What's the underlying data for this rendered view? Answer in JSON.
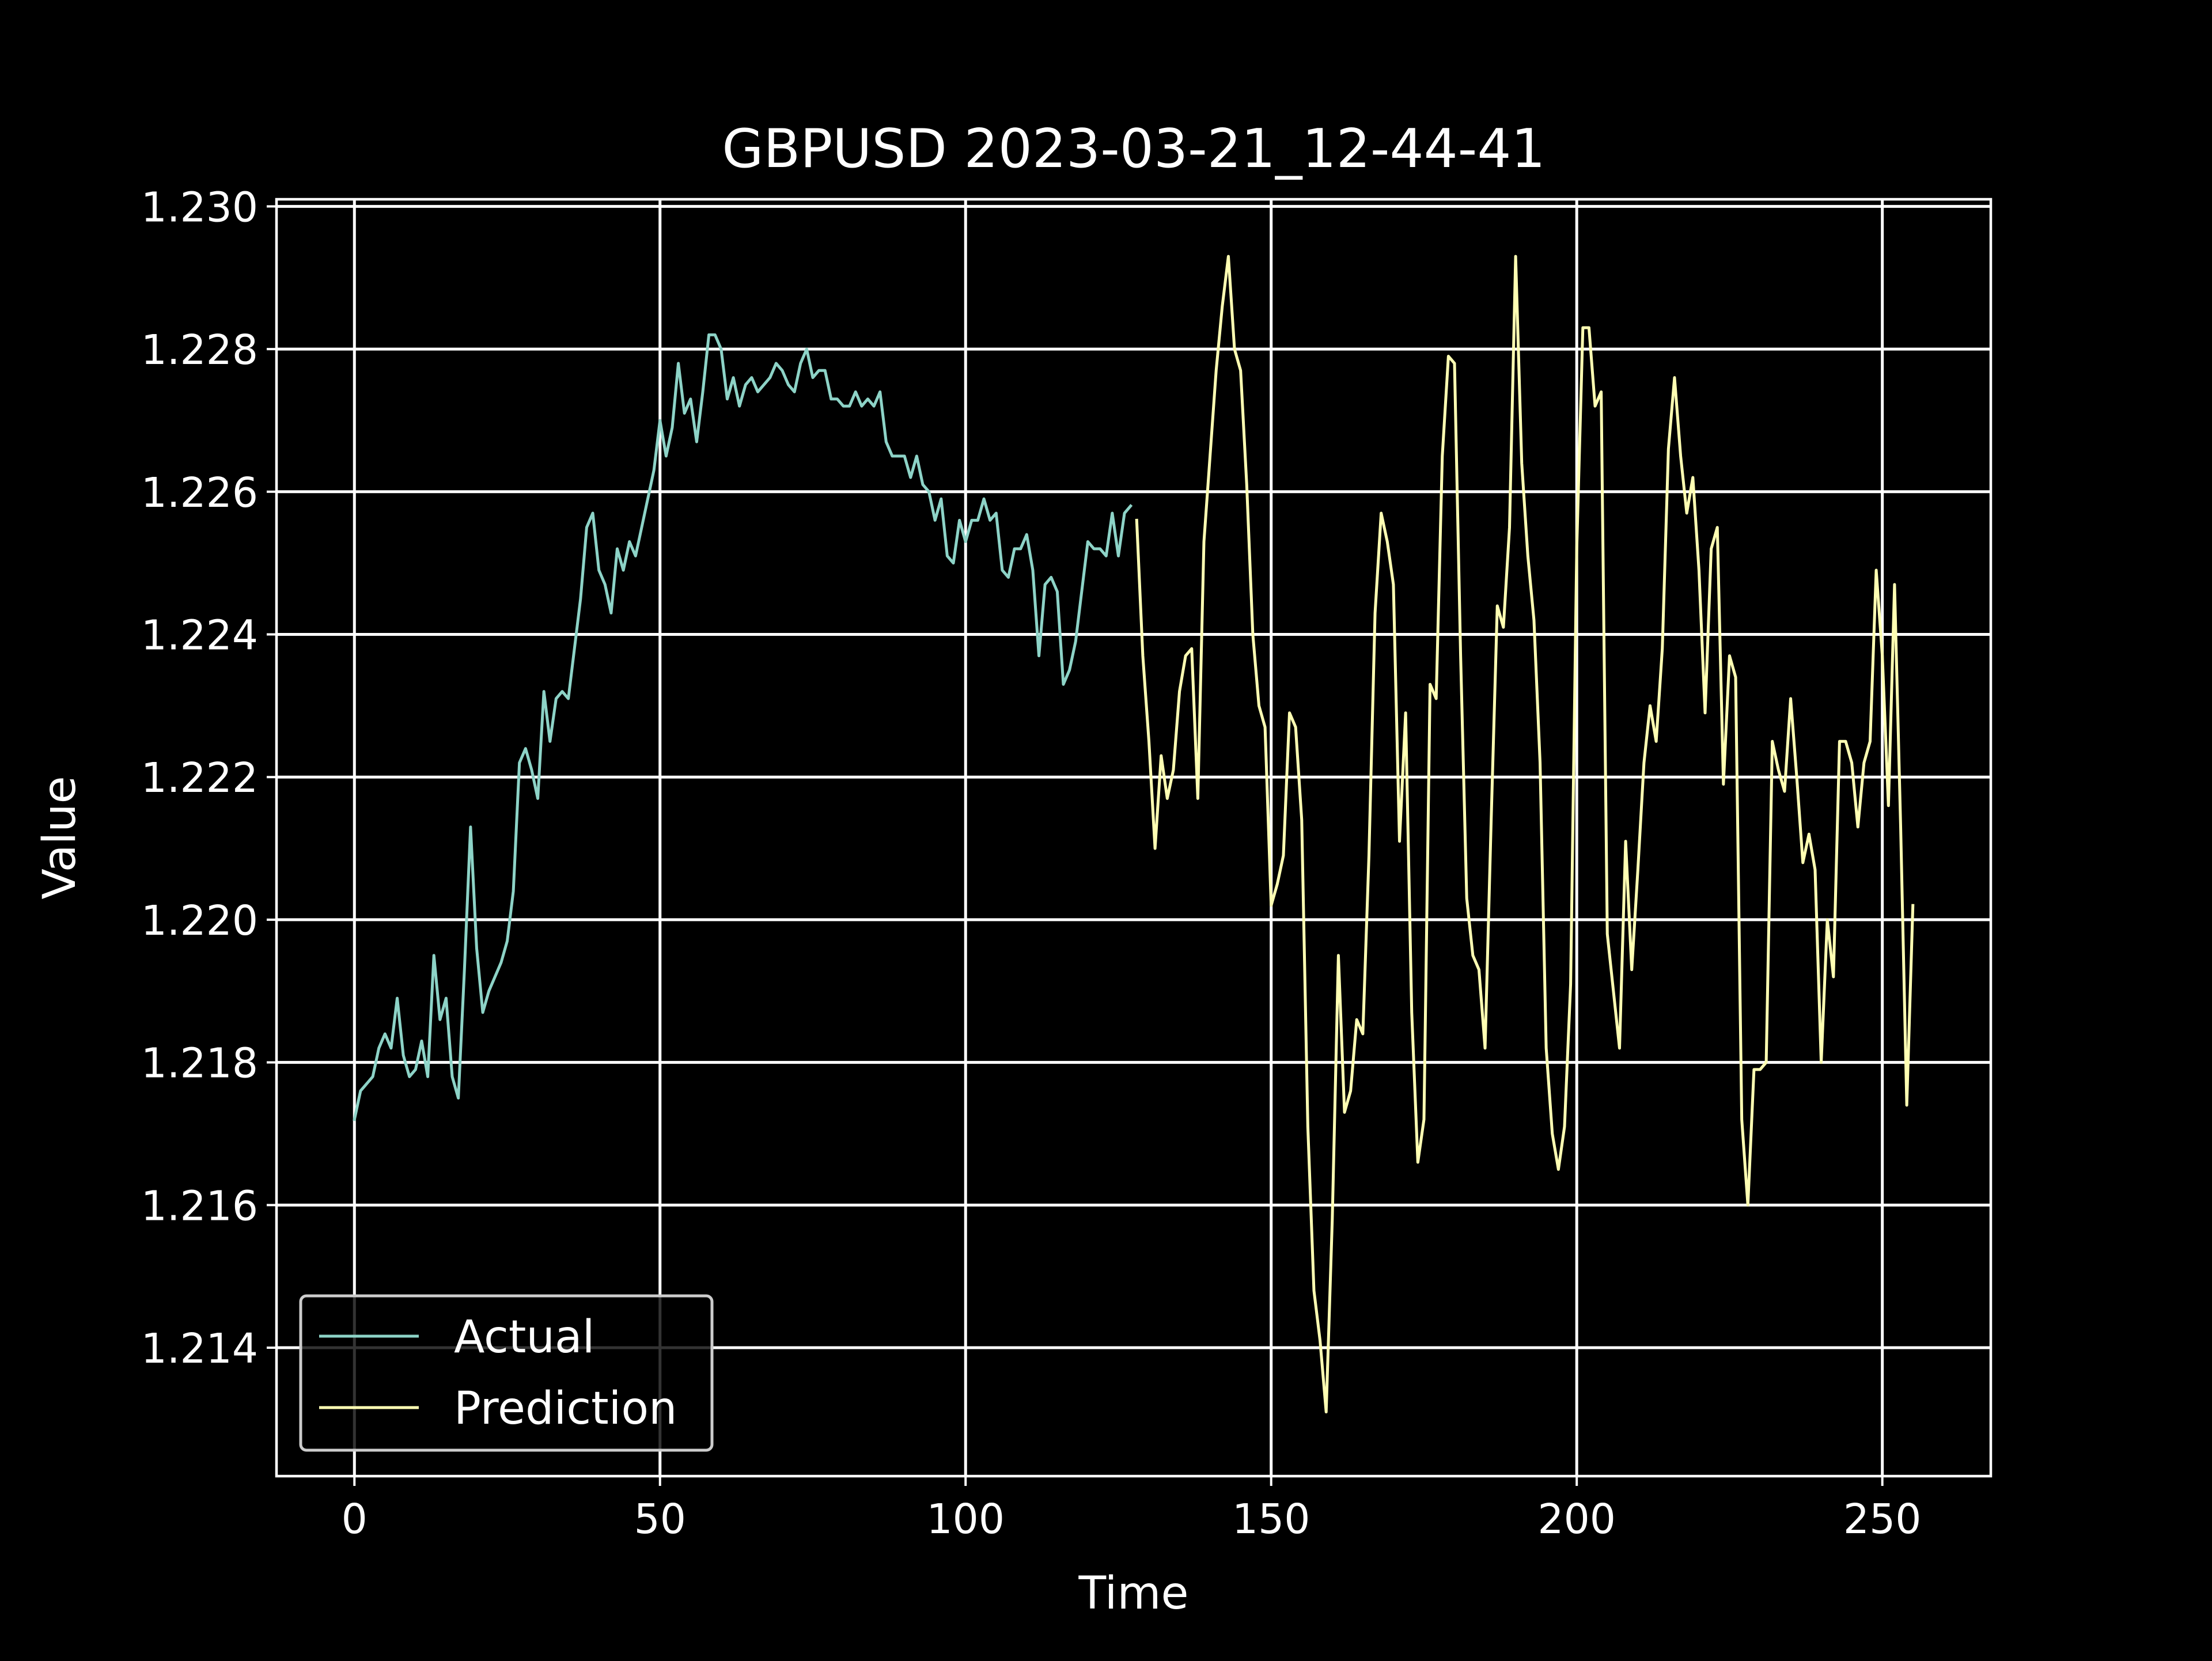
{
  "chart_data": {
    "type": "line",
    "title": "GBPUSD 2023-03-21_12-44-41",
    "xlabel": "Time",
    "ylabel": "Value",
    "xlim": [
      -12.75,
      267.75
    ],
    "ylim": [
      1.2122,
      1.2301
    ],
    "xticks": [
      0,
      50,
      100,
      150,
      200,
      250
    ],
    "xtick_labels": [
      "0",
      "50",
      "100",
      "150",
      "200",
      "250"
    ],
    "yticks": [
      1.214,
      1.216,
      1.218,
      1.22,
      1.222,
      1.224,
      1.226,
      1.228,
      1.23
    ],
    "ytick_labels": [
      "1.214",
      "1.216",
      "1.218",
      "1.220",
      "1.222",
      "1.224",
      "1.226",
      "1.228",
      "1.230"
    ],
    "grid": true,
    "legend_position": "lower-left",
    "background": "#000000",
    "series": [
      {
        "name": "Actual",
        "color": "#8dd3c7",
        "x_start": 0,
        "values": [
          1.2172,
          1.2176,
          1.2177,
          1.2178,
          1.2182,
          1.2184,
          1.2182,
          1.2189,
          1.2181,
          1.2178,
          1.2179,
          1.2183,
          1.2178,
          1.2195,
          1.2186,
          1.2189,
          1.2178,
          1.2175,
          1.2193,
          1.2213,
          1.2196,
          1.2187,
          1.219,
          1.2192,
          1.2194,
          1.2197,
          1.2204,
          1.2222,
          1.2224,
          1.2221,
          1.2217,
          1.2232,
          1.2225,
          1.2231,
          1.2232,
          1.2231,
          1.2238,
          1.2245,
          1.2255,
          1.2257,
          1.2249,
          1.2247,
          1.2243,
          1.2252,
          1.2249,
          1.2253,
          1.2251,
          1.2255,
          1.2259,
          1.2263,
          1.227,
          1.2265,
          1.2269,
          1.2278,
          1.2271,
          1.2273,
          1.2267,
          1.2274,
          1.2282,
          1.2282,
          1.228,
          1.2273,
          1.2276,
          1.2272,
          1.2275,
          1.2276,
          1.2274,
          1.2275,
          1.2276,
          1.2278,
          1.2277,
          1.2275,
          1.2274,
          1.2278,
          1.228,
          1.2276,
          1.2277,
          1.2277,
          1.2273,
          1.2273,
          1.2272,
          1.2272,
          1.2274,
          1.2272,
          1.2273,
          1.2272,
          1.2274,
          1.2267,
          1.2265,
          1.2265,
          1.2265,
          1.2262,
          1.2265,
          1.2261,
          1.226,
          1.2256,
          1.2259,
          1.2251,
          1.225,
          1.2256,
          1.2253,
          1.2256,
          1.2256,
          1.2259,
          1.2256,
          1.2257,
          1.2249,
          1.2248,
          1.2252,
          1.2252,
          1.2254,
          1.2249,
          1.2237,
          1.2247,
          1.2248,
          1.2246,
          1.2233,
          1.2235,
          1.2239,
          1.2246,
          1.2253,
          1.2252,
          1.2252,
          1.2251,
          1.2257,
          1.2251,
          1.2257,
          1.2258
        ]
      },
      {
        "name": "Prediction",
        "color": "#ffffb3",
        "x_start": 128,
        "values": [
          1.2256,
          1.2237,
          1.2225,
          1.221,
          1.2223,
          1.2217,
          1.2221,
          1.2232,
          1.2237,
          1.2238,
          1.2217,
          1.2253,
          1.2265,
          1.2277,
          1.2286,
          1.2293,
          1.228,
          1.2277,
          1.2261,
          1.224,
          1.223,
          1.2227,
          1.2202,
          1.2205,
          1.2209,
          1.2229,
          1.2227,
          1.2214,
          1.2171,
          1.2148,
          1.2141,
          1.2131,
          1.2158,
          1.2195,
          1.2173,
          1.2176,
          1.2186,
          1.2184,
          1.2209,
          1.2243,
          1.2257,
          1.2253,
          1.2247,
          1.2211,
          1.2229,
          1.2187,
          1.2166,
          1.2172,
          1.2233,
          1.2231,
          1.2265,
          1.2279,
          1.2278,
          1.2237,
          1.2203,
          1.2195,
          1.2193,
          1.2182,
          1.2214,
          1.2244,
          1.2241,
          1.2255,
          1.2293,
          1.2264,
          1.2251,
          1.2242,
          1.2222,
          1.2182,
          1.217,
          1.2165,
          1.2171,
          1.2191,
          1.2252,
          1.2283,
          1.2283,
          1.2272,
          1.2274,
          1.2198,
          1.219,
          1.2182,
          1.2211,
          1.2193,
          1.2207,
          1.2222,
          1.223,
          1.2225,
          1.2238,
          1.2266,
          1.2276,
          1.2265,
          1.2257,
          1.2262,
          1.2249,
          1.2229,
          1.2252,
          1.2255,
          1.2219,
          1.2237,
          1.2234,
          1.2172,
          1.216,
          1.2179,
          1.2179,
          1.218,
          1.2225,
          1.2221,
          1.2218,
          1.2231,
          1.222,
          1.2208,
          1.2212,
          1.2207,
          1.218,
          1.22,
          1.2192,
          1.2225,
          1.2225,
          1.2222,
          1.2213,
          1.2222,
          1.2225,
          1.2249,
          1.2237,
          1.2216,
          1.2247,
          1.2213,
          1.2174,
          1.2202
        ]
      }
    ]
  }
}
